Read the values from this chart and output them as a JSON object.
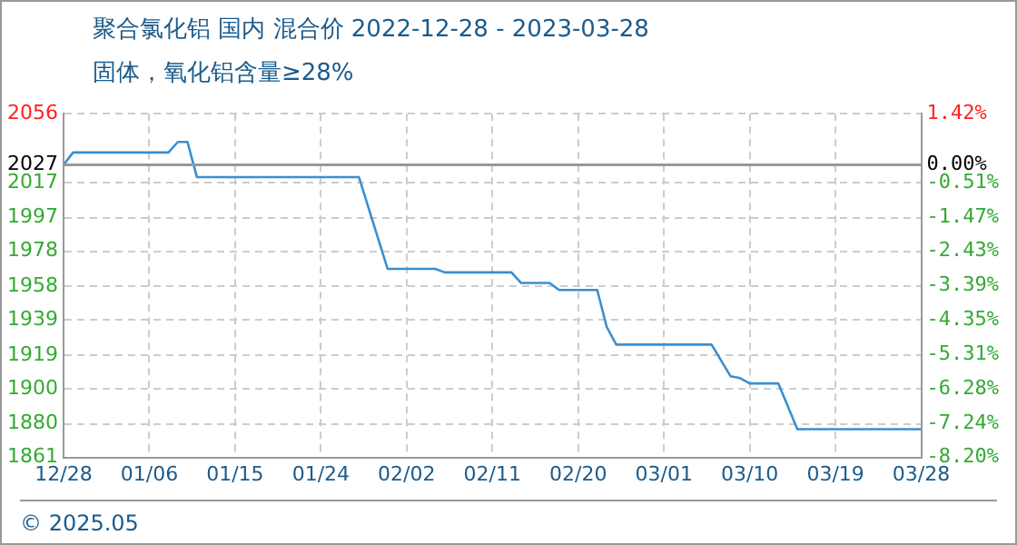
{
  "chart_data": {
    "type": "line",
    "title": "聚合氯化铝 国内 混合价 2022-12-28 - 2023-03-28",
    "subtitle": "固体，氧化铝含量≥28%",
    "annotations": [
      "© 2025.05"
    ],
    "x": [
      "2022-12-28",
      "2022-12-29",
      "2023-01-08",
      "2023-01-09",
      "2023-01-10",
      "2023-01-11",
      "2023-01-28",
      "2023-01-31",
      "2023-02-05",
      "2023-02-06",
      "2023-02-13",
      "2023-02-14",
      "2023-02-17",
      "2023-02-18",
      "2023-02-22",
      "2023-02-23",
      "2023-02-24",
      "2023-03-06",
      "2023-03-08",
      "2023-03-09",
      "2023-03-10",
      "2023-03-13",
      "2023-03-15",
      "2023-03-28"
    ],
    "series": [
      {
        "color": "#3a8fd0",
        "values": [
          2027,
          2034,
          2034,
          2040,
          2040,
          2020,
          2020,
          1968,
          1968,
          1966,
          1966,
          1960,
          1960,
          1956,
          1956,
          1935,
          1925,
          1925,
          1907,
          1906,
          1903,
          1903,
          1877,
          1877
        ]
      }
    ],
    "xlim": [
      "2022-12-28",
      "2023-03-28"
    ],
    "xticks": [
      {
        "value": "2022-12-28",
        "label": "12/28"
      },
      {
        "value": "2023-01-06",
        "label": "01/06"
      },
      {
        "value": "2023-01-15",
        "label": "01/15"
      },
      {
        "value": "2023-01-24",
        "label": "01/24"
      },
      {
        "value": "2023-02-02",
        "label": "02/02"
      },
      {
        "value": "2023-02-11",
        "label": "02/11"
      },
      {
        "value": "2023-02-20",
        "label": "02/20"
      },
      {
        "value": "2023-03-01",
        "label": "03/01"
      },
      {
        "value": "2023-03-10",
        "label": "03/10"
      },
      {
        "value": "2023-03-19",
        "label": "03/19"
      },
      {
        "value": "2023-03-28",
        "label": "03/28"
      }
    ],
    "ylim": [
      1861,
      2056
    ],
    "yticks": [
      1861,
      1880,
      1900,
      1919,
      1939,
      1958,
      1978,
      1997,
      2017,
      2027,
      2056
    ],
    "y2lim": [
      -8.2,
      1.42
    ],
    "y2ticks": [
      {
        "value": -8.2,
        "label": "-8.20%"
      },
      {
        "value": -7.24,
        "label": "-7.24%"
      },
      {
        "value": -6.28,
        "label": "-6.28%"
      },
      {
        "value": -5.31,
        "label": "-5.31%"
      },
      {
        "value": -4.35,
        "label": "-4.35%"
      },
      {
        "value": -3.39,
        "label": "-3.39%"
      },
      {
        "value": -2.43,
        "label": "-2.43%"
      },
      {
        "value": -1.47,
        "label": "-1.47%"
      },
      {
        "value": -0.51,
        "label": "-0.51%"
      },
      {
        "value": 0,
        "label": "0.00%"
      },
      {
        "value": 1.42,
        "label": "1.42%"
      }
    ],
    "ref_lines": [
      {
        "axis": "y",
        "value": 2027,
        "color": "#999999"
      }
    ],
    "grid": true,
    "legend": false,
    "marker": "none",
    "line_style": "solid"
  }
}
